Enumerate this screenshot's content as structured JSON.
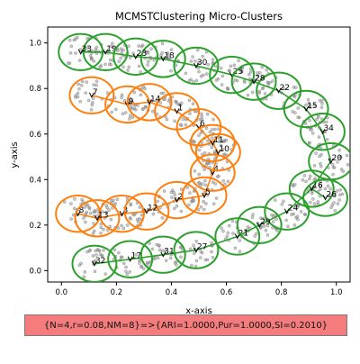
{
  "chart_data": {
    "type": "scatter",
    "title": "MCMSTClustering Micro-Clusters",
    "xlabel": "x-axis",
    "ylabel": "y-axis",
    "xlim": [
      -0.05,
      1.05
    ],
    "ylim": [
      -0.05,
      1.07
    ],
    "xticks": [
      "0.0",
      "0.2",
      "0.4",
      "0.6",
      "0.8",
      "1.0"
    ],
    "yticks": [
      "0.0",
      "0.2",
      "0.4",
      "0.6",
      "0.8",
      "1.0"
    ],
    "grid": false,
    "point_color": "#9a9a9a",
    "radius": 0.08,
    "cluster_colors": {
      "orange": "#ff7f0e",
      "green": "#2ca02c"
    },
    "micro_clusters": [
      {
        "id": "1",
        "x": 0.42,
        "y": 0.7,
        "cluster": "orange"
      },
      {
        "id": "2",
        "x": 0.42,
        "y": 0.31,
        "cluster": "orange"
      },
      {
        "id": "3",
        "x": 0.22,
        "y": 0.25,
        "cluster": "orange"
      },
      {
        "id": "4",
        "x": 0.55,
        "y": 0.43,
        "cluster": "orange"
      },
      {
        "id": "5",
        "x": 0.52,
        "y": 0.33,
        "cluster": "orange"
      },
      {
        "id": "6",
        "x": 0.5,
        "y": 0.63,
        "cluster": "orange"
      },
      {
        "id": "7",
        "x": 0.11,
        "y": 0.77,
        "cluster": "orange"
      },
      {
        "id": "8",
        "x": 0.06,
        "y": 0.25,
        "cluster": "orange"
      },
      {
        "id": "9",
        "x": 0.24,
        "y": 0.73,
        "cluster": "orange"
      },
      {
        "id": "10",
        "x": 0.57,
        "y": 0.52,
        "cluster": "orange"
      },
      {
        "id": "11",
        "x": 0.55,
        "y": 0.56,
        "cluster": "orange"
      },
      {
        "id": "12",
        "x": 0.31,
        "y": 0.26,
        "cluster": "orange"
      },
      {
        "id": "13",
        "x": 0.13,
        "y": 0.23,
        "cluster": "orange"
      },
      {
        "id": "14",
        "x": 0.32,
        "y": 0.74,
        "cluster": "orange"
      },
      {
        "id": "15",
        "x": 0.89,
        "y": 0.71,
        "cluster": "green"
      },
      {
        "id": "16",
        "x": 0.91,
        "y": 0.36,
        "cluster": "green"
      },
      {
        "id": "17",
        "x": 0.25,
        "y": 0.05,
        "cluster": "green"
      },
      {
        "id": "18",
        "x": 0.37,
        "y": 0.93,
        "cluster": "green"
      },
      {
        "id": "19",
        "x": 0.16,
        "y": 0.96,
        "cluster": "green"
      },
      {
        "id": "20",
        "x": 0.98,
        "y": 0.48,
        "cluster": "green"
      },
      {
        "id": "21",
        "x": 0.64,
        "y": 0.15,
        "cluster": "green"
      },
      {
        "id": "22",
        "x": 0.79,
        "y": 0.79,
        "cluster": "green"
      },
      {
        "id": "23",
        "x": 0.27,
        "y": 0.94,
        "cluster": "green"
      },
      {
        "id": "24",
        "x": 0.82,
        "y": 0.26,
        "cluster": "green"
      },
      {
        "id": "25",
        "x": 0.62,
        "y": 0.86,
        "cluster": "green"
      },
      {
        "id": "26",
        "x": 0.96,
        "y": 0.32,
        "cluster": "green"
      },
      {
        "id": "27",
        "x": 0.49,
        "y": 0.09,
        "cluster": "green"
      },
      {
        "id": "28",
        "x": 0.7,
        "y": 0.83,
        "cluster": "green"
      },
      {
        "id": "29",
        "x": 0.72,
        "y": 0.2,
        "cluster": "green"
      },
      {
        "id": "30",
        "x": 0.49,
        "y": 0.9,
        "cluster": "green"
      },
      {
        "id": "31",
        "x": 0.37,
        "y": 0.07,
        "cluster": "green"
      },
      {
        "id": "32",
        "x": 0.12,
        "y": 0.03,
        "cluster": "green"
      },
      {
        "id": "33",
        "x": 0.07,
        "y": 0.96,
        "cluster": "green"
      },
      {
        "id": "34",
        "x": 0.95,
        "y": 0.61,
        "cluster": "green"
      }
    ],
    "mst_edges": [
      [
        "7",
        "9"
      ],
      [
        "9",
        "14"
      ],
      [
        "14",
        "1"
      ],
      [
        "1",
        "6"
      ],
      [
        "6",
        "11"
      ],
      [
        "11",
        "10"
      ],
      [
        "10",
        "4"
      ],
      [
        "4",
        "5"
      ],
      [
        "5",
        "2"
      ],
      [
        "2",
        "12"
      ],
      [
        "12",
        "3"
      ],
      [
        "3",
        "13"
      ],
      [
        "13",
        "8"
      ],
      [
        "33",
        "19"
      ],
      [
        "19",
        "23"
      ],
      [
        "23",
        "18"
      ],
      [
        "18",
        "30"
      ],
      [
        "30",
        "25"
      ],
      [
        "25",
        "28"
      ],
      [
        "28",
        "22"
      ],
      [
        "22",
        "15"
      ],
      [
        "15",
        "34"
      ],
      [
        "34",
        "20"
      ],
      [
        "20",
        "16"
      ],
      [
        "16",
        "26"
      ],
      [
        "16",
        "24"
      ],
      [
        "24",
        "29"
      ],
      [
        "29",
        "21"
      ],
      [
        "21",
        "27"
      ],
      [
        "27",
        "31"
      ],
      [
        "31",
        "17"
      ],
      [
        "17",
        "32"
      ]
    ]
  },
  "status": {
    "label": "{N=4,r=0.08,NM=8}=>{ARI=1.0000,Pur=1.0000,SI=0.2010}",
    "background": "#f47c7c"
  }
}
